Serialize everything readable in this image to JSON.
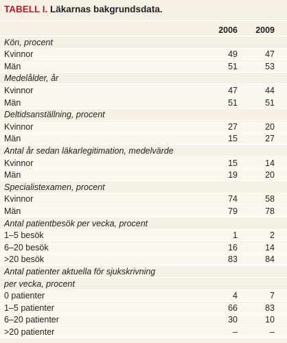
{
  "title": {
    "label": "TABELL I.",
    "text": "Läkarnas bakgrundsdata."
  },
  "columns": [
    "2006",
    "2009"
  ],
  "sections": [
    {
      "header": "Kön, procent",
      "rows": [
        [
          "Kvinnor",
          49,
          47
        ],
        [
          "Män",
          51,
          53
        ]
      ]
    },
    {
      "header": "Medelålder, år",
      "rows": [
        [
          "Kvinnor",
          47,
          44
        ],
        [
          "Män",
          51,
          51
        ]
      ]
    },
    {
      "header": "Deltidsanställning, procent",
      "rows": [
        [
          "Kvinnor",
          27,
          20
        ],
        [
          "Män",
          15,
          27
        ]
      ]
    },
    {
      "header": "Antal år sedan läkarlegitimation, medelvärde",
      "rows": [
        [
          "Kvinnor",
          15,
          14
        ],
        [
          "Män",
          19,
          20
        ]
      ]
    },
    {
      "header": "Specialistexamen, procent",
      "rows": [
        [
          "Kvinnor",
          74,
          58
        ],
        [
          "Män",
          79,
          78
        ]
      ]
    },
    {
      "header": "Antal patientbesök per vecka, procent",
      "rows": [
        [
          "1–5 besök",
          1,
          2
        ],
        [
          "6–20 besök",
          16,
          14
        ],
        [
          ">20 besök",
          83,
          84
        ]
      ]
    },
    {
      "header": [
        "Antal patienter aktuella för sjukskrivning",
        "per vecka, procent"
      ],
      "rows": [
        [
          "0 patienter",
          4,
          7
        ],
        [
          "1–5 patienter",
          66,
          83
        ],
        [
          "6–20 patienter",
          30,
          10
        ],
        [
          ">20 patienter",
          "–",
          "–"
        ]
      ]
    }
  ]
}
